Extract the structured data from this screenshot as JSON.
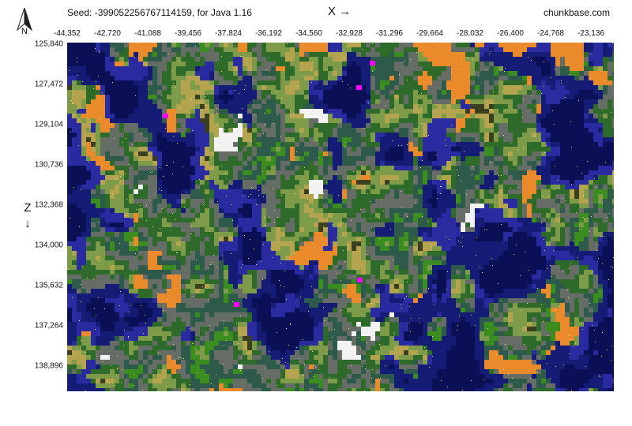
{
  "header": {
    "seed_text": "Seed: -399052256767114159, for Java 1.16",
    "x_axis_label": "X →",
    "brand": "chunkbase.com"
  },
  "compass": {
    "letter": "N",
    "icon": "north-arrow-icon"
  },
  "z_axis": {
    "label": "Z ↓"
  },
  "x_ticks": [
    "-44,352",
    "-42,720",
    "-41,088",
    "-39,456",
    "-37,824",
    "-36,192",
    "-34,560",
    "-32,928",
    "-31,296",
    "-29,664",
    "-28,032",
    "-26,400",
    "-24,768",
    "-23,136"
  ],
  "z_ticks": [
    "125,840",
    "127,472",
    "129,104",
    "130,736",
    "132,368",
    "134,000",
    "135,632",
    "137,264",
    "138,896"
  ],
  "map": {
    "type": "biome-map",
    "colors": {
      "ocean": "#141c76",
      "deep_ocean": "#0a0f56",
      "plains": "#7e9b49",
      "forest": "#2e6a2a",
      "jungle": "#3a8d1e",
      "taiga": "#2d5a4a",
      "mountains": "#666d66",
      "badlands": "#ea8a2a",
      "snow": "#f2f2f2",
      "ice_spikes": "#bcd9f0",
      "warm_ocean": "#1cd8b0",
      "savanna": "#b4a34f",
      "mushroom": "#ff00ff",
      "dark_forest": "#3a3f20",
      "lukewarm": "#2a2ba0"
    }
  }
}
